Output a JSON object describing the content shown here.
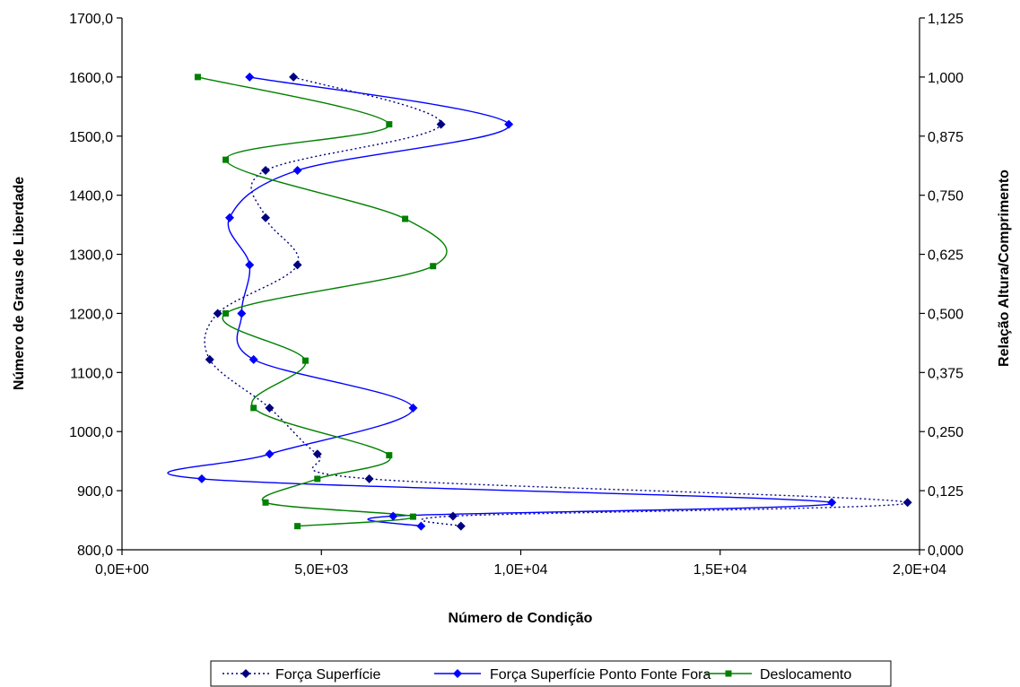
{
  "chart_data": {
    "type": "line",
    "title": "",
    "xlabel": "Número de Condição",
    "ylabel": "Número de Graus de Liberdade",
    "y2label": "Relação Altura/Comprimento",
    "xlim": [
      0,
      20000
    ],
    "ylim": [
      800,
      1700
    ],
    "y2lim": [
      0,
      1.125
    ],
    "x_ticks": [
      "0,0E+00",
      "5,0E+03",
      "1,0E+04",
      "1,5E+04",
      "2,0E+04"
    ],
    "x_tick_values": [
      0,
      5000,
      10000,
      15000,
      20000
    ],
    "y_ticks": [
      "800,0",
      "900,0",
      "1000,0",
      "1100,0",
      "1200,0",
      "1300,0",
      "1400,0",
      "1500,0",
      "1600,0",
      "1700,0"
    ],
    "y_tick_values": [
      800,
      900,
      1000,
      1100,
      1200,
      1300,
      1400,
      1500,
      1600,
      1700
    ],
    "y2_ticks": [
      "0,000",
      "0,125",
      "0,250",
      "0,375",
      "0,500",
      "0,625",
      "0,750",
      "0,875",
      "1,000",
      "1,125"
    ],
    "y2_tick_values": [
      0,
      0.125,
      0.25,
      0.375,
      0.5,
      0.625,
      0.75,
      0.875,
      1.0,
      1.125
    ],
    "grid": false,
    "legend_position": "bottom",
    "series": [
      {
        "name": "Força Superfície",
        "color": "#000080",
        "line_style": "dotted",
        "marker": "diamond",
        "axis": "left",
        "points": [
          [
            8500,
            840
          ],
          [
            8300,
            857
          ],
          [
            19700,
            880
          ],
          [
            6200,
            920
          ],
          [
            4900,
            962
          ],
          [
            3700,
            1040
          ],
          [
            2200,
            1122
          ],
          [
            2400,
            1200
          ],
          [
            4400,
            1282
          ],
          [
            3600,
            1362
          ],
          [
            3600,
            1442
          ],
          [
            8000,
            1520
          ],
          [
            4300,
            1600
          ]
        ]
      },
      {
        "name": "Força Superfície Ponto Fonte Fora",
        "color": "#0000FF",
        "line_style": "solid",
        "marker": "diamond",
        "axis": "left",
        "points": [
          [
            7500,
            840
          ],
          [
            6800,
            857
          ],
          [
            17800,
            880
          ],
          [
            2000,
            920
          ],
          [
            3700,
            962
          ],
          [
            7300,
            1040
          ],
          [
            3300,
            1122
          ],
          [
            3000,
            1200
          ],
          [
            3200,
            1282
          ],
          [
            2700,
            1362
          ],
          [
            4400,
            1442
          ],
          [
            9700,
            1520
          ],
          [
            3200,
            1600
          ]
        ]
      },
      {
        "name": "Deslocamento",
        "color": "#008000",
        "line_style": "solid",
        "marker": "square",
        "axis": "right",
        "points": [
          [
            4400,
            0.05
          ],
          [
            7300,
            0.07
          ],
          [
            3600,
            0.1
          ],
          [
            4900,
            0.15
          ],
          [
            6700,
            0.2
          ],
          [
            3300,
            0.3
          ],
          [
            4600,
            0.4
          ],
          [
            2600,
            0.5
          ],
          [
            7800,
            0.6
          ],
          [
            7100,
            0.7
          ],
          [
            2600,
            0.825
          ],
          [
            6700,
            0.9
          ],
          [
            1900,
            1.0
          ]
        ]
      }
    ]
  }
}
